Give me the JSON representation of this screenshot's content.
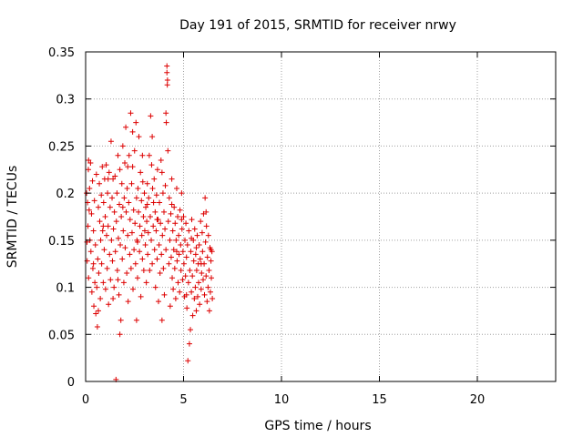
{
  "chart_data": {
    "type": "scatter",
    "title": "Day 191 of 2015, SRMTID for receiver nrwy",
    "xlabel": "GPS time / hours",
    "ylabel": "SRMTID / TECUs",
    "xlim": [
      0,
      24
    ],
    "ylim": [
      0,
      0.35
    ],
    "xticks": [
      0,
      5,
      10,
      15,
      20
    ],
    "xtick_labels": [
      "0",
      "5",
      "10",
      "15",
      "20"
    ],
    "yticks": [
      0,
      0.05,
      0.1,
      0.15,
      0.2,
      0.25,
      0.3,
      0.35
    ],
    "ytick_labels": [
      "0",
      "0.05",
      "0.1",
      "0.15",
      "0.2",
      "0.25",
      "0.3",
      "0.35"
    ],
    "grid": true,
    "marker": "+",
    "series": [
      {
        "color": "#dd0000",
        "points": [
          [
            0.05,
            0.2
          ],
          [
            0.07,
            0.148
          ],
          [
            0.08,
            0.128
          ],
          [
            0.1,
            0.19
          ],
          [
            0.12,
            0.165
          ],
          [
            0.14,
            0.225
          ],
          [
            0.15,
            0.11
          ],
          [
            0.18,
            0.182
          ],
          [
            0.2,
            0.205
          ],
          [
            0.22,
            0.15
          ],
          [
            0.25,
            0.232
          ],
          [
            0.27,
            0.138
          ],
          [
            0.3,
            0.178
          ],
          [
            0.32,
            0.095
          ],
          [
            0.35,
            0.213
          ],
          [
            0.37,
            0.12
          ],
          [
            0.4,
            0.16
          ],
          [
            0.42,
            0.08
          ],
          [
            0.45,
            0.192
          ],
          [
            0.47,
            0.105
          ],
          [
            0.5,
            0.145
          ],
          [
            0.52,
            0.072
          ],
          [
            0.55,
            0.22
          ],
          [
            0.57,
            0.1
          ],
          [
            0.6,
            0.058
          ],
          [
            0.62,
            0.13
          ],
          [
            0.65,
            0.185
          ],
          [
            0.67,
            0.115
          ],
          [
            0.7,
            0.21
          ],
          [
            0.72,
            0.17
          ],
          [
            0.75,
            0.088
          ],
          [
            0.77,
            0.15
          ],
          [
            0.8,
            0.198
          ],
          [
            0.82,
            0.125
          ],
          [
            0.85,
            0.228
          ],
          [
            0.87,
            0.16
          ],
          [
            0.9,
            0.105
          ],
          [
            0.92,
            0.19
          ],
          [
            0.95,
            0.14
          ],
          [
            0.97,
            0.215
          ],
          [
            1.0,
            0.175
          ],
          [
            1.02,
            0.098
          ],
          [
            1.05,
            0.23
          ],
          [
            1.07,
            0.155
          ],
          [
            1.1,
            0.12
          ],
          [
            1.12,
            0.2
          ],
          [
            1.15,
            0.165
          ],
          [
            1.17,
            0.082
          ],
          [
            1.2,
            0.222
          ],
          [
            1.22,
            0.135
          ],
          [
            1.25,
            0.185
          ],
          [
            1.27,
            0.108
          ],
          [
            1.3,
            0.255
          ],
          [
            1.32,
            0.15
          ],
          [
            1.35,
            0.195
          ],
          [
            1.37,
            0.128
          ],
          [
            1.4,
            0.215
          ],
          [
            1.42,
            0.162
          ],
          [
            1.45,
            0.1
          ],
          [
            1.47,
            0.18
          ],
          [
            1.5,
            0.218
          ],
          [
            1.52,
            0.138
          ],
          [
            1.55,
            0.002
          ],
          [
            1.57,
            0.17
          ],
          [
            1.6,
            0.2
          ],
          [
            1.62,
            0.118
          ],
          [
            1.65,
            0.24
          ],
          [
            1.67,
            0.152
          ],
          [
            1.7,
            0.092
          ],
          [
            1.72,
            0.188
          ],
          [
            1.75,
            0.225
          ],
          [
            1.77,
            0.145
          ],
          [
            1.8,
            0.065
          ],
          [
            1.82,
            0.175
          ],
          [
            1.85,
            0.21
          ],
          [
            1.87,
            0.13
          ],
          [
            1.9,
            0.25
          ],
          [
            1.92,
            0.16
          ],
          [
            1.95,
            0.105
          ],
          [
            1.97,
            0.195
          ],
          [
            2.0,
            0.232
          ],
          [
            2.02,
            0.142
          ],
          [
            2.05,
            0.27
          ],
          [
            2.07,
            0.18
          ],
          [
            2.1,
            0.115
          ],
          [
            2.12,
            0.205
          ],
          [
            2.15,
            0.155
          ],
          [
            2.17,
            0.085
          ],
          [
            2.2,
            0.19
          ],
          [
            2.22,
            0.24
          ],
          [
            2.25,
            0.135
          ],
          [
            2.27,
            0.172
          ],
          [
            2.3,
            0.285
          ],
          [
            2.32,
            0.12
          ],
          [
            2.35,
            0.21
          ],
          [
            2.37,
            0.158
          ],
          [
            2.4,
            0.228
          ],
          [
            2.42,
            0.098
          ],
          [
            2.45,
            0.182
          ],
          [
            2.47,
            0.14
          ],
          [
            2.5,
            0.245
          ],
          [
            2.52,
            0.168
          ],
          [
            2.55,
            0.125
          ],
          [
            2.57,
            0.275
          ],
          [
            2.6,
            0.195
          ],
          [
            2.62,
            0.15
          ],
          [
            2.65,
            0.11
          ],
          [
            2.67,
            0.205
          ],
          [
            2.7,
            0.18
          ],
          [
            2.72,
            0.26
          ],
          [
            2.75,
            0.138
          ],
          [
            2.77,
            0.165
          ],
          [
            2.8,
            0.222
          ],
          [
            2.82,
            0.09
          ],
          [
            2.85,
            0.192
          ],
          [
            2.87,
            0.155
          ],
          [
            2.9,
            0.13
          ],
          [
            2.92,
            0.212
          ],
          [
            2.95,
            0.175
          ],
          [
            2.97,
            0.118
          ],
          [
            3.0,
            0.2
          ],
          [
            3.02,
            0.16
          ],
          [
            3.05,
            0.145
          ],
          [
            3.07,
            0.185
          ],
          [
            3.1,
            0.105
          ],
          [
            3.12,
            0.17
          ],
          [
            3.15,
            0.21
          ],
          [
            3.17,
            0.135
          ],
          [
            3.2,
            0.158
          ],
          [
            3.22,
            0.195
          ],
          [
            3.25,
            0.24
          ],
          [
            3.27,
            0.118
          ],
          [
            3.3,
            0.175
          ],
          [
            3.32,
            0.282
          ],
          [
            3.35,
            0.15
          ],
          [
            3.37,
            0.23
          ],
          [
            3.4,
            0.125
          ],
          [
            3.42,
            0.205
          ],
          [
            3.45,
            0.165
          ],
          [
            3.47,
            0.19
          ],
          [
            3.5,
            0.215
          ],
          [
            3.52,
            0.14
          ],
          [
            3.55,
            0.18
          ],
          [
            3.57,
            0.1
          ],
          [
            3.6,
            0.16
          ],
          [
            3.62,
            0.198
          ],
          [
            3.65,
            0.13
          ],
          [
            3.67,
            0.225
          ],
          [
            3.7,
            0.172
          ],
          [
            3.72,
            0.085
          ],
          [
            3.75,
            0.145
          ],
          [
            3.77,
            0.19
          ],
          [
            3.8,
            0.115
          ],
          [
            3.82,
            0.168
          ],
          [
            3.85,
            0.235
          ],
          [
            3.87,
            0.135
          ],
          [
            3.9,
            0.065
          ],
          [
            3.92,
            0.155
          ],
          [
            3.95,
            0.2
          ],
          [
            3.97,
            0.12
          ],
          [
            4.0,
            0.18
          ],
          [
            4.02,
            0.092
          ],
          [
            4.05,
            0.162
          ],
          [
            4.07,
            0.208
          ],
          [
            4.1,
            0.14
          ],
          [
            4.12,
            0.275
          ],
          [
            4.15,
            0.335
          ],
          [
            4.17,
            0.315
          ],
          [
            4.2,
            0.245
          ],
          [
            4.22,
            0.17
          ],
          [
            4.25,
            0.125
          ],
          [
            4.27,
            0.195
          ],
          [
            4.3,
            0.15
          ],
          [
            4.32,
            0.08
          ],
          [
            4.35,
            0.178
          ],
          [
            4.37,
            0.132
          ],
          [
            4.4,
            0.215
          ],
          [
            4.42,
            0.11
          ],
          [
            4.45,
            0.16
          ],
          [
            4.47,
            0.098
          ],
          [
            4.5,
            0.14
          ],
          [
            4.52,
            0.185
          ],
          [
            4.55,
            0.12
          ],
          [
            4.57,
            0.168
          ],
          [
            4.6,
            0.088
          ],
          [
            4.62,
            0.15
          ],
          [
            4.65,
            0.205
          ],
          [
            4.67,
            0.128
          ],
          [
            4.7,
            0.175
          ],
          [
            4.72,
            0.105
          ],
          [
            4.75,
            0.155
          ],
          [
            4.77,
            0.135
          ],
          [
            4.8,
            0.095
          ],
          [
            4.82,
            0.182
          ],
          [
            4.85,
            0.145
          ],
          [
            4.87,
            0.118
          ],
          [
            4.9,
            0.2
          ],
          [
            4.92,
            0.162
          ],
          [
            4.95,
            0.108
          ],
          [
            4.97,
            0.138
          ],
          [
            5.0,
            0.175
          ],
          [
            5.02,
            0.125
          ],
          [
            5.05,
            0.09
          ],
          [
            5.07,
            0.15
          ],
          [
            5.1,
            0.112
          ],
          [
            5.12,
            0.168
          ],
          [
            5.15,
            0.132
          ],
          [
            5.17,
            0.078
          ],
          [
            5.2,
            0.145
          ],
          [
            5.22,
            0.022
          ],
          [
            5.25,
            0.105
          ],
          [
            5.27,
            0.16
          ],
          [
            5.3,
            0.04
          ],
          [
            5.32,
            0.118
          ],
          [
            5.35,
            0.055
          ],
          [
            5.37,
            0.138
          ],
          [
            5.4,
            0.095
          ],
          [
            5.42,
            0.172
          ],
          [
            5.45,
            0.112
          ],
          [
            5.47,
            0.07
          ],
          [
            5.5,
            0.15
          ],
          [
            5.52,
            0.128
          ],
          [
            5.55,
            0.088
          ],
          [
            5.57,
            0.162
          ],
          [
            5.6,
            0.1
          ],
          [
            5.62,
            0.135
          ],
          [
            5.65,
            0.075
          ],
          [
            5.67,
            0.118
          ],
          [
            5.7,
            0.155
          ],
          [
            5.72,
            0.09
          ],
          [
            5.75,
            0.125
          ],
          [
            5.77,
            0.105
          ],
          [
            5.8,
            0.145
          ],
          [
            5.82,
            0.082
          ],
          [
            5.85,
            0.13
          ],
          [
            5.87,
            0.17
          ],
          [
            5.9,
            0.098
          ],
          [
            5.92,
            0.115
          ],
          [
            5.95,
            0.158
          ],
          [
            5.97,
            0.138
          ],
          [
            6.0,
            0.108
          ],
          [
            6.02,
            0.178
          ],
          [
            6.05,
            0.125
          ],
          [
            6.07,
            0.092
          ],
          [
            6.1,
            0.195
          ],
          [
            6.12,
            0.148
          ],
          [
            6.15,
            0.112
          ],
          [
            6.17,
            0.165
          ],
          [
            6.2,
            0.085
          ],
          [
            6.22,
            0.132
          ],
          [
            6.25,
            0.1
          ],
          [
            6.27,
            0.155
          ],
          [
            6.3,
            0.118
          ],
          [
            6.32,
            0.075
          ],
          [
            6.35,
            0.142
          ],
          [
            6.37,
            0.095
          ],
          [
            6.4,
            0.128
          ],
          [
            6.42,
            0.11
          ],
          [
            6.45,
            0.138
          ],
          [
            6.47,
            0.088
          ],
          [
            0.15,
            0.235
          ],
          [
            0.4,
            0.125
          ],
          [
            0.65,
            0.075
          ],
          [
            0.9,
            0.165
          ],
          [
            1.15,
            0.215
          ],
          [
            1.4,
            0.088
          ],
          [
            1.65,
            0.108
          ],
          [
            1.9,
            0.185
          ],
          [
            2.15,
            0.228
          ],
          [
            2.4,
            0.265
          ],
          [
            2.65,
            0.148
          ],
          [
            2.9,
            0.24
          ],
          [
            3.15,
            0.188
          ],
          [
            3.4,
            0.26
          ],
          [
            3.65,
            0.172
          ],
          [
            3.9,
            0.222
          ],
          [
            4.15,
            0.328
          ],
          [
            4.4,
            0.188
          ],
          [
            4.65,
            0.138
          ],
          [
            4.9,
            0.172
          ],
          [
            5.15,
            0.092
          ],
          [
            5.4,
            0.152
          ],
          [
            5.65,
            0.142
          ],
          [
            5.9,
            0.125
          ],
          [
            6.15,
            0.18
          ],
          [
            6.4,
            0.14
          ],
          [
            2.6,
            0.065
          ],
          [
            1.75,
            0.05
          ],
          [
            4.18,
            0.32
          ],
          [
            4.1,
            0.285
          ]
        ]
      }
    ]
  }
}
